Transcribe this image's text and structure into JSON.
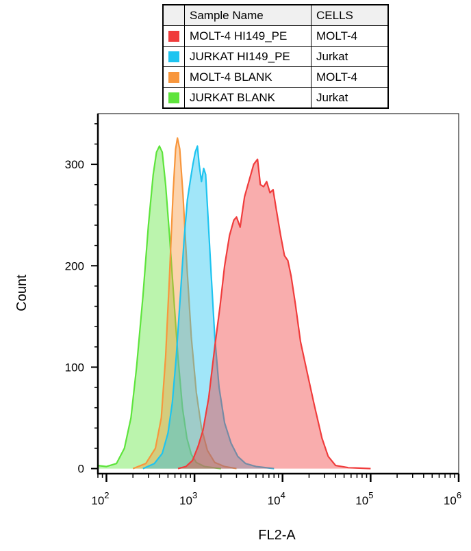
{
  "legend": {
    "header": {
      "name": "Sample Name",
      "cells": "CELLS"
    },
    "rows": [
      {
        "name": "MOLT-4 HI149_PE",
        "cells": "MOLT-4",
        "color": "#f03c3c"
      },
      {
        "name": "JURKAT HI149_PE",
        "cells": "Jurkat",
        "color": "#1ec4f0"
      },
      {
        "name": "MOLT-4 BLANK",
        "cells": "MOLT-4",
        "color": "#f8963c"
      },
      {
        "name": "JURKAT BLANK",
        "cells": "Jurkat",
        "color": "#5ee43c"
      }
    ]
  },
  "chart_data": {
    "type": "area",
    "xlabel": "FL2-A",
    "ylabel": "Count",
    "xscale": "log",
    "xlim": [
      80,
      1000000
    ],
    "ylim": [
      -5,
      350
    ],
    "x_ticks": [
      {
        "base": "10",
        "exp": "2",
        "value": 100
      },
      {
        "base": "10",
        "exp": "3",
        "value": 1000
      },
      {
        "base": "10",
        "exp": "4",
        "value": 10000
      },
      {
        "base": "10",
        "exp": "5",
        "value": 100000
      },
      {
        "base": "10",
        "exp": "6",
        "value": 1000000
      }
    ],
    "y_ticks": [
      0,
      100,
      200,
      300
    ],
    "grid": false,
    "series": [
      {
        "name": "JURKAT BLANK",
        "color": "#5ee43c",
        "points": [
          [
            80,
            3
          ],
          [
            100,
            2
          ],
          [
            130,
            5
          ],
          [
            160,
            20
          ],
          [
            190,
            50
          ],
          [
            220,
            100
          ],
          [
            260,
            170
          ],
          [
            300,
            240
          ],
          [
            340,
            290
          ],
          [
            370,
            312
          ],
          [
            400,
            318
          ],
          [
            430,
            312
          ],
          [
            470,
            280
          ],
          [
            520,
            230
          ],
          [
            580,
            170
          ],
          [
            650,
            110
          ],
          [
            730,
            60
          ],
          [
            820,
            30
          ],
          [
            920,
            14
          ],
          [
            1050,
            6
          ],
          [
            1300,
            2
          ],
          [
            2000,
            0
          ]
        ]
      },
      {
        "name": "MOLT-4 BLANK",
        "color": "#f8963c",
        "points": [
          [
            200,
            0
          ],
          [
            280,
            5
          ],
          [
            360,
            20
          ],
          [
            420,
            50
          ],
          [
            470,
            110
          ],
          [
            520,
            190
          ],
          [
            570,
            270
          ],
          [
            610,
            315
          ],
          [
            640,
            326
          ],
          [
            680,
            315
          ],
          [
            740,
            270
          ],
          [
            820,
            200
          ],
          [
            920,
            130
          ],
          [
            1050,
            75
          ],
          [
            1200,
            40
          ],
          [
            1400,
            18
          ],
          [
            1700,
            6
          ],
          [
            2200,
            2
          ],
          [
            3000,
            0
          ]
        ]
      },
      {
        "name": "JURKAT HI149_PE",
        "color": "#1ec4f0",
        "points": [
          [
            260,
            0
          ],
          [
            350,
            5
          ],
          [
            430,
            15
          ],
          [
            500,
            35
          ],
          [
            560,
            65
          ],
          [
            620,
            110
          ],
          [
            690,
            170
          ],
          [
            760,
            225
          ],
          [
            830,
            265
          ],
          [
            900,
            285
          ],
          [
            960,
            300
          ],
          [
            1020,
            312
          ],
          [
            1080,
            318
          ],
          [
            1130,
            300
          ],
          [
            1200,
            283
          ],
          [
            1270,
            296
          ],
          [
            1340,
            290
          ],
          [
            1420,
            250
          ],
          [
            1550,
            190
          ],
          [
            1700,
            130
          ],
          [
            1900,
            80
          ],
          [
            2200,
            45
          ],
          [
            2600,
            25
          ],
          [
            3100,
            12
          ],
          [
            3800,
            5
          ],
          [
            5000,
            2
          ],
          [
            8000,
            0
          ]
        ]
      },
      {
        "name": "MOLT-4 HI149_PE",
        "color": "#f03c3c",
        "points": [
          [
            650,
            0
          ],
          [
            800,
            2
          ],
          [
            950,
            8
          ],
          [
            1100,
            22
          ],
          [
            1250,
            38
          ],
          [
            1450,
            70
          ],
          [
            1700,
            120
          ],
          [
            1950,
            160
          ],
          [
            2200,
            200
          ],
          [
            2500,
            230
          ],
          [
            2800,
            245
          ],
          [
            3000,
            248
          ],
          [
            3300,
            238
          ],
          [
            3700,
            268
          ],
          [
            4200,
            285
          ],
          [
            4700,
            300
          ],
          [
            5200,
            305
          ],
          [
            5600,
            280
          ],
          [
            6100,
            278
          ],
          [
            6600,
            283
          ],
          [
            7200,
            272
          ],
          [
            7800,
            275
          ],
          [
            8500,
            255
          ],
          [
            9500,
            230
          ],
          [
            10500,
            210
          ],
          [
            11500,
            205
          ],
          [
            12500,
            190
          ],
          [
            14000,
            162
          ],
          [
            16000,
            125
          ],
          [
            19000,
            95
          ],
          [
            23000,
            62
          ],
          [
            28000,
            30
          ],
          [
            33000,
            12
          ],
          [
            40000,
            3
          ],
          [
            55000,
            1
          ],
          [
            100000,
            0
          ]
        ]
      }
    ]
  }
}
